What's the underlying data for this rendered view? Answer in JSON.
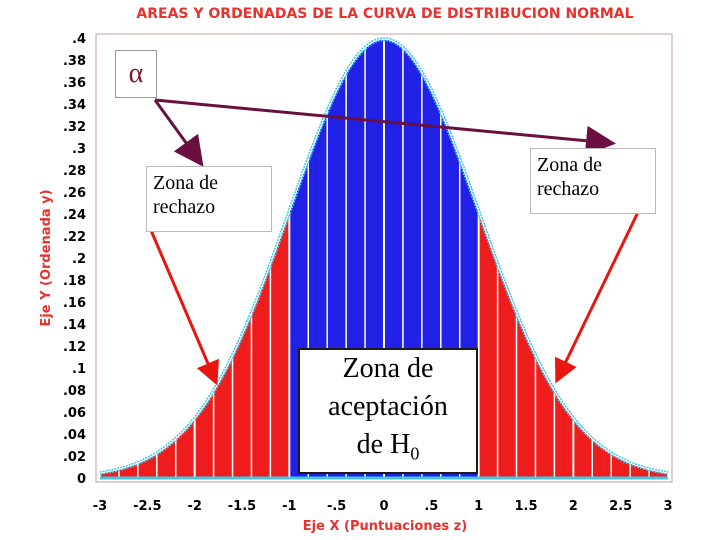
{
  "chart_data": {
    "type": "area",
    "title": "AREAS Y ORDENADAS DE LA CURVA DE DISTRIBUCION NORMAL",
    "xlabel": "Eje X (Puntuaciones z)",
    "ylabel": "Eje Y (Ordenada y)",
    "xlim": [
      -3,
      3
    ],
    "ylim": [
      0,
      0.4
    ],
    "xticks": [
      "-3",
      "-2.5",
      "-2",
      "-1.5",
      "-1",
      "-.5",
      "0",
      ".5",
      "1",
      "1.5",
      "2",
      "2.5",
      "3"
    ],
    "yticks": [
      "0",
      ".02",
      ".04",
      ".06",
      ".08",
      ".1",
      ".12",
      ".14",
      ".16",
      ".18",
      ".2",
      ".22",
      ".24",
      ".26",
      ".28",
      ".3",
      ".32",
      ".34",
      ".36",
      ".38",
      ".4"
    ],
    "acceptance_region": [
      -1,
      1
    ],
    "acceptance_color": "#2020e6",
    "rejection_color": "#ee1c1c",
    "curve_color": "#40c8e8"
  },
  "annotations": {
    "alpha": "α",
    "zone_left": "Zona de rechazo",
    "zone_right": "Zona de rechazo",
    "accept_line1": "Zona de",
    "accept_line2": "aceptación",
    "accept_line3_main": "de H",
    "accept_line3_sub": "0"
  },
  "colors": {
    "arrow_alpha": "#6a1040",
    "arrow_red": "#e8160f",
    "axis_text": "#e8322d"
  }
}
